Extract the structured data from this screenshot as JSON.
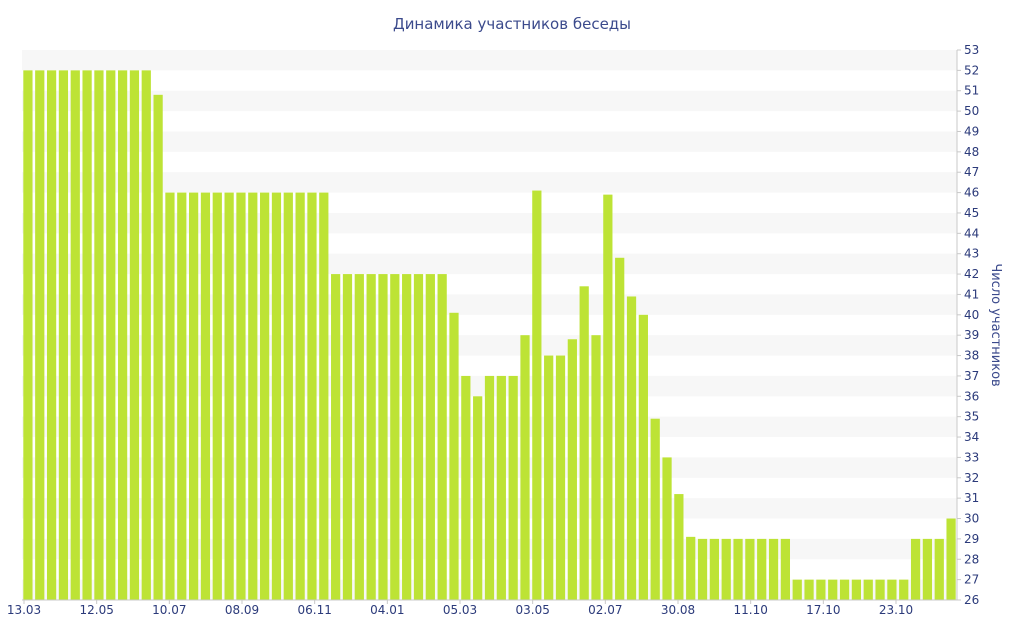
{
  "chart_data": {
    "type": "bar",
    "title": "Динамика участников беседы",
    "xlabel": "",
    "ylabel": "Число участников",
    "ylim": [
      26,
      53
    ],
    "y_axis_side": "right",
    "grid": "horizontal alternating bands",
    "bar_color": "#bde335",
    "band_color": "#f7f7f7",
    "text_color": "#2b3a7a",
    "x_tick_labels": [
      "13.03",
      "12.05",
      "10.07",
      "08.09",
      "06.11",
      "04.01",
      "05.03",
      "03.05",
      "02.07",
      "30.08",
      "11.10",
      "17.10",
      "23.10"
    ],
    "y_ticks": [
      26,
      27,
      28,
      29,
      30,
      31,
      32,
      33,
      34,
      35,
      36,
      37,
      38,
      39,
      40,
      41,
      42,
      43,
      44,
      45,
      46,
      47,
      48,
      49,
      50,
      51,
      52,
      53
    ],
    "values": [
      52,
      52,
      52,
      52,
      52,
      52,
      52,
      52,
      52,
      52,
      52,
      50.8,
      46,
      46,
      46,
      46,
      46,
      46,
      46,
      46,
      46,
      46,
      46,
      46,
      46,
      46,
      42,
      42,
      42,
      42,
      42,
      42,
      42,
      42,
      42,
      42,
      40.1,
      37,
      36,
      37,
      37,
      37,
      39,
      46.1,
      38,
      38,
      38.8,
      41.4,
      39,
      45.9,
      42.8,
      40.9,
      40,
      34.9,
      33,
      31.2,
      29.1,
      29,
      29,
      29,
      29,
      29,
      29,
      29,
      29,
      27,
      27,
      27,
      27,
      27,
      27,
      27,
      27,
      27,
      27,
      29,
      29,
      29,
      30
    ]
  }
}
